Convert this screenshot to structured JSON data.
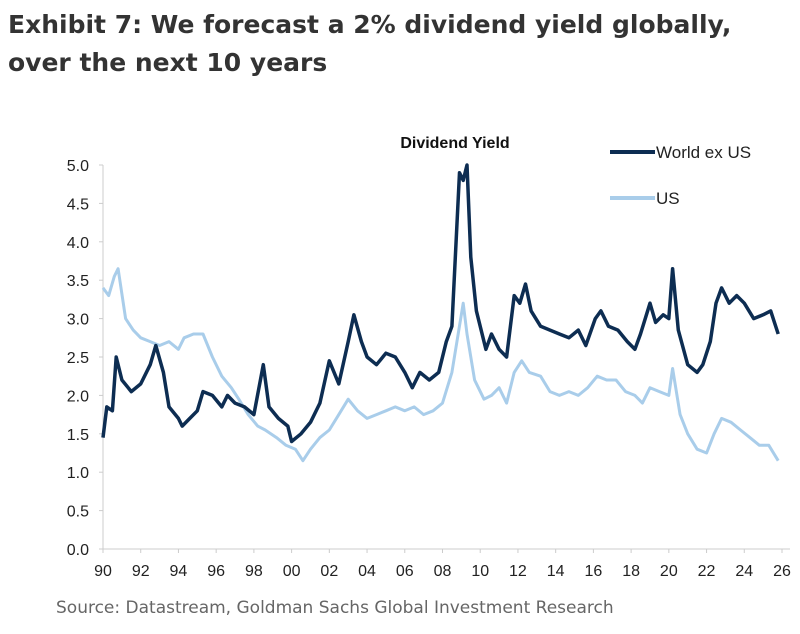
{
  "header": {
    "title": "Exhibit 7: We forecast a 2% dividend yield globally, over the next 10 years"
  },
  "footer": {
    "source": "Source: Datastream, Goldman Sachs Global Investment Research"
  },
  "chart_data": {
    "type": "line",
    "title": "Dividend Yield",
    "xlabel": "",
    "ylabel": "",
    "xlim": [
      1990,
      2026
    ],
    "ylim": [
      0,
      5
    ],
    "x_ticks": [
      "90",
      "92",
      "94",
      "96",
      "98",
      "00",
      "02",
      "04",
      "06",
      "08",
      "10",
      "12",
      "14",
      "16",
      "18",
      "20",
      "22",
      "24",
      "26"
    ],
    "y_ticks": [
      "0.0",
      "0.5",
      "1.0",
      "1.5",
      "2.0",
      "2.5",
      "3.0",
      "3.5",
      "4.0",
      "4.5",
      "5.0"
    ],
    "grid": false,
    "legend_position": "top-right",
    "series": [
      {
        "name": "World ex US",
        "color": "#0d2d52",
        "x": [
          1990.0,
          1990.2,
          1990.5,
          1990.7,
          1991,
          1991.5,
          1992,
          1992.5,
          1992.8,
          1993.2,
          1993.5,
          1994,
          1994.2,
          1994.6,
          1995,
          1995.3,
          1995.8,
          1996.3,
          1996.6,
          1997,
          1997.5,
          1998,
          1998.5,
          1998.8,
          1999.3,
          1999.8,
          2000.0,
          2000.5,
          2001,
          2001.5,
          2002,
          2002.5,
          2003,
          2003.3,
          2003.7,
          2004,
          2004.5,
          2005,
          2005.5,
          2006,
          2006.4,
          2006.8,
          2007.3,
          2007.8,
          2008.2,
          2008.5,
          2008.9,
          2009.1,
          2009.3,
          2009.5,
          2009.8,
          2010.3,
          2010.6,
          2011,
          2011.4,
          2011.8,
          2012.1,
          2012.4,
          2012.7,
          2013.2,
          2013.7,
          2014.2,
          2014.7,
          2015.2,
          2015.6,
          2016.1,
          2016.4,
          2016.8,
          2017.3,
          2017.8,
          2018.2,
          2018.5,
          2019,
          2019.3,
          2019.7,
          2020.0,
          2020.2,
          2020.5,
          2021,
          2021.5,
          2021.8,
          2022.2,
          2022.5,
          2022.8,
          2023.2,
          2023.6,
          2024,
          2024.5,
          2025,
          2025.4,
          2025.8
        ],
        "values": [
          1.45,
          1.85,
          1.8,
          2.5,
          2.2,
          2.05,
          2.15,
          2.4,
          2.65,
          2.3,
          1.85,
          1.7,
          1.6,
          1.7,
          1.8,
          2.05,
          2.0,
          1.85,
          2.0,
          1.9,
          1.85,
          1.75,
          2.4,
          1.85,
          1.7,
          1.6,
          1.4,
          1.5,
          1.65,
          1.9,
          2.45,
          2.15,
          2.7,
          3.05,
          2.7,
          2.5,
          2.4,
          2.55,
          2.5,
          2.3,
          2.1,
          2.3,
          2.2,
          2.3,
          2.7,
          2.9,
          4.9,
          4.8,
          5.0,
          3.8,
          3.1,
          2.6,
          2.8,
          2.6,
          2.5,
          3.3,
          3.2,
          3.45,
          3.1,
          2.9,
          2.85,
          2.8,
          2.75,
          2.85,
          2.65,
          3.0,
          3.1,
          2.9,
          2.85,
          2.7,
          2.6,
          2.8,
          3.2,
          2.95,
          3.05,
          3.0,
          3.65,
          2.85,
          2.4,
          2.3,
          2.4,
          2.7,
          3.2,
          3.4,
          3.2,
          3.3,
          3.2,
          3.0,
          3.05,
          3.1,
          2.8
        ]
      },
      {
        "name": "US",
        "color": "#a9cdea",
        "x": [
          1990,
          1990.3,
          1990.6,
          1990.8,
          1991.2,
          1991.6,
          1992,
          1992.5,
          1993,
          1993.5,
          1994,
          1994.3,
          1994.8,
          1995.3,
          1995.8,
          1996.3,
          1996.8,
          1997.2,
          1997.7,
          1998.2,
          1998.6,
          1999.2,
          1999.7,
          2000.2,
          2000.6,
          2001,
          2001.5,
          2002,
          2002.5,
          2003,
          2003.5,
          2004,
          2004.5,
          2005,
          2005.5,
          2006,
          2006.5,
          2007,
          2007.5,
          2008,
          2008.5,
          2009.1,
          2009.3,
          2009.7,
          2010.2,
          2010.6,
          2011,
          2011.4,
          2011.8,
          2012.2,
          2012.6,
          2013.2,
          2013.7,
          2014.2,
          2014.7,
          2015.2,
          2015.7,
          2016.2,
          2016.7,
          2017.2,
          2017.7,
          2018.2,
          2018.6,
          2019,
          2019.5,
          2020.0,
          2020.2,
          2020.6,
          2021,
          2021.5,
          2022,
          2022.4,
          2022.8,
          2023.3,
          2023.8,
          2024.3,
          2024.8,
          2025.3,
          2025.8
        ],
        "values": [
          3.4,
          3.3,
          3.55,
          3.65,
          3.0,
          2.85,
          2.75,
          2.7,
          2.65,
          2.7,
          2.6,
          2.75,
          2.8,
          2.8,
          2.5,
          2.25,
          2.1,
          1.95,
          1.75,
          1.6,
          1.55,
          1.45,
          1.35,
          1.3,
          1.15,
          1.3,
          1.45,
          1.55,
          1.75,
          1.95,
          1.8,
          1.7,
          1.75,
          1.8,
          1.85,
          1.8,
          1.85,
          1.75,
          1.8,
          1.9,
          2.3,
          3.2,
          2.8,
          2.2,
          1.95,
          2.0,
          2.1,
          1.9,
          2.3,
          2.45,
          2.3,
          2.25,
          2.05,
          2.0,
          2.05,
          2.0,
          2.1,
          2.25,
          2.2,
          2.2,
          2.05,
          2.0,
          1.9,
          2.1,
          2.05,
          2.0,
          2.35,
          1.75,
          1.5,
          1.3,
          1.25,
          1.5,
          1.7,
          1.65,
          1.55,
          1.45,
          1.35,
          1.35,
          1.15
        ]
      }
    ]
  }
}
